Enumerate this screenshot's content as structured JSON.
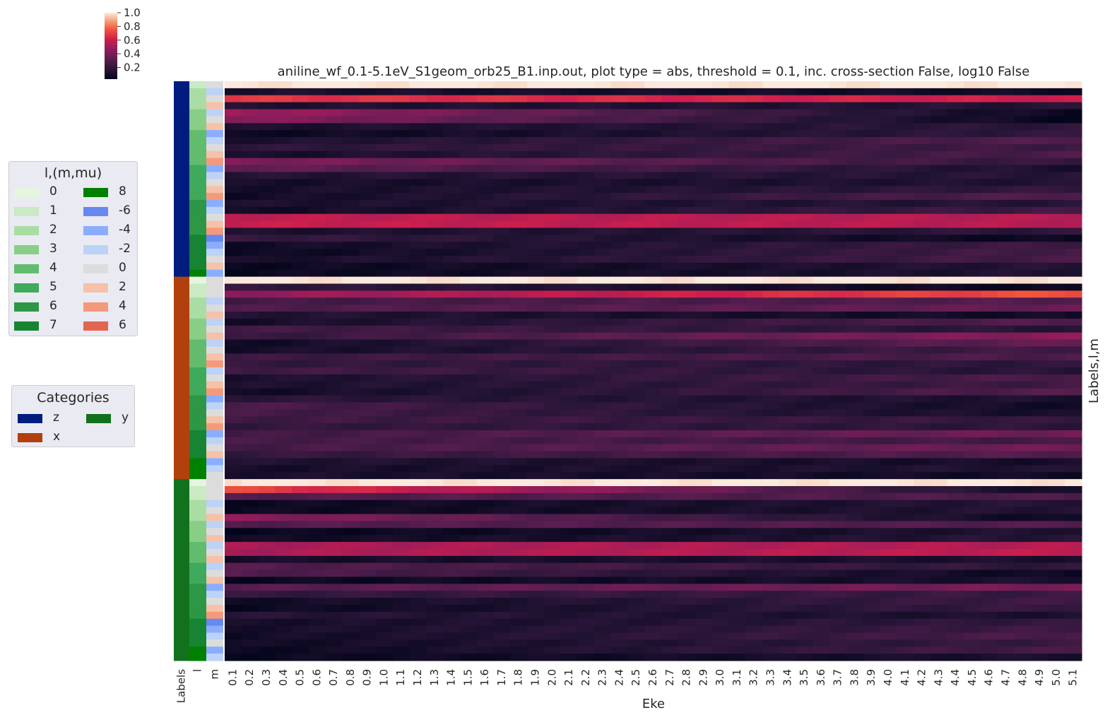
{
  "chart_data": {
    "type": "heatmap",
    "title": "aniline_wf_0.1-5.1eV_S1geom_orb25_B1.inp.out, plot type = abs, threshold = 0.1, inc. cross-section False, log10 False",
    "xlabel": "Eke",
    "ylabel": "Labels,l,m",
    "x": [
      0.1,
      0.2,
      0.3,
      0.4,
      0.5,
      0.6,
      0.7,
      0.8,
      0.9,
      1.0,
      1.1,
      1.2,
      1.3,
      1.4,
      1.5,
      1.6,
      1.7,
      1.8,
      1.9,
      2.0,
      2.1,
      2.2,
      2.3,
      2.4,
      2.5,
      2.6,
      2.7,
      2.8,
      2.9,
      3.0,
      3.1,
      3.2,
      3.3,
      3.4,
      3.5,
      3.6,
      3.7,
      3.8,
      3.9,
      4.0,
      4.1,
      4.2,
      4.3,
      4.4,
      4.5,
      4.6,
      4.7,
      4.8,
      4.9,
      5.0,
      5.1
    ],
    "row_annotation_headers": [
      "Labels",
      "l",
      "m"
    ],
    "colorbar": {
      "ticks": [
        1.0,
        0.8,
        0.6,
        0.4,
        0.2
      ],
      "range": [
        0.03,
        1.0
      ],
      "colormap": "rocket"
    },
    "groups": [
      {
        "label": "z",
        "rows": [
          {
            "l": 1,
            "m": 0,
            "start": 1.0,
            "end": 1.0
          },
          {
            "l": 2,
            "m": -2,
            "start": 0.12,
            "end": 0.08
          },
          {
            "l": 2,
            "m": 0,
            "start": 0.68,
            "end": 0.6
          },
          {
            "l": 2,
            "m": 2,
            "start": 0.13,
            "end": 0.15
          },
          {
            "l": 3,
            "m": -2,
            "start": 0.5,
            "end": 0.06
          },
          {
            "l": 3,
            "m": 0,
            "start": 0.45,
            "end": 0.05
          },
          {
            "l": 3,
            "m": 2,
            "start": 0.12,
            "end": 0.18
          },
          {
            "l": 4,
            "m": -4,
            "start": 0.06,
            "end": 0.2
          },
          {
            "l": 4,
            "m": -2,
            "start": 0.12,
            "end": 0.3
          },
          {
            "l": 4,
            "m": 0,
            "start": 0.18,
            "end": 0.24
          },
          {
            "l": 4,
            "m": 2,
            "start": 0.1,
            "end": 0.28
          },
          {
            "l": 4,
            "m": 4,
            "start": 0.42,
            "end": 0.2
          },
          {
            "l": 5,
            "m": -4,
            "start": 0.35,
            "end": 0.12
          },
          {
            "l": 5,
            "m": -2,
            "start": 0.15,
            "end": 0.16
          },
          {
            "l": 5,
            "m": 0,
            "start": 0.1,
            "end": 0.14
          },
          {
            "l": 5,
            "m": 2,
            "start": 0.1,
            "end": 0.2
          },
          {
            "l": 5,
            "m": 4,
            "start": 0.08,
            "end": 0.3
          },
          {
            "l": 6,
            "m": -4,
            "start": 0.12,
            "end": 0.16
          },
          {
            "l": 6,
            "m": -2,
            "start": 0.08,
            "end": 0.24
          },
          {
            "l": 6,
            "m": 0,
            "start": 0.58,
            "end": 0.55
          },
          {
            "l": 6,
            "m": 2,
            "start": 0.6,
            "end": 0.55
          },
          {
            "l": 6,
            "m": 4,
            "start": 0.12,
            "end": 0.18
          },
          {
            "l": 7,
            "m": -6,
            "start": 0.22,
            "end": 0.05
          },
          {
            "l": 7,
            "m": -4,
            "start": 0.08,
            "end": 0.24
          },
          {
            "l": 7,
            "m": -2,
            "start": 0.06,
            "end": 0.26
          },
          {
            "l": 7,
            "m": 0,
            "start": 0.1,
            "end": 0.26
          },
          {
            "l": 7,
            "m": 2,
            "start": 0.06,
            "end": 0.15
          },
          {
            "l": 8,
            "m": -4,
            "start": 0.06,
            "end": 0.14
          }
        ]
      },
      {
        "label": "x",
        "rows": [
          {
            "l": 0,
            "m": 0,
            "start": 1.0,
            "end": 1.0
          },
          {
            "l": 1,
            "m": 0,
            "start": 0.2,
            "end": 0.05
          },
          {
            "l": 1,
            "m": 0,
            "start": 0.45,
            "end": 0.75
          },
          {
            "l": 2,
            "m": -2,
            "start": 0.25,
            "end": 0.3
          },
          {
            "l": 2,
            "m": 0,
            "start": 0.28,
            "end": 0.35
          },
          {
            "l": 2,
            "m": 2,
            "start": 0.15,
            "end": 0.08
          },
          {
            "l": 3,
            "m": -2,
            "start": 0.1,
            "end": 0.3
          },
          {
            "l": 3,
            "m": 0,
            "start": 0.25,
            "end": 0.16
          },
          {
            "l": 3,
            "m": 2,
            "start": 0.2,
            "end": 0.45
          },
          {
            "l": 4,
            "m": -2,
            "start": 0.08,
            "end": 0.35
          },
          {
            "l": 4,
            "m": 0,
            "start": 0.1,
            "end": 0.25
          },
          {
            "l": 4,
            "m": 2,
            "start": 0.22,
            "end": 0.28
          },
          {
            "l": 4,
            "m": 4,
            "start": 0.2,
            "end": 0.18
          },
          {
            "l": 5,
            "m": -2,
            "start": 0.25,
            "end": 0.16
          },
          {
            "l": 5,
            "m": 0,
            "start": 0.12,
            "end": 0.28
          },
          {
            "l": 5,
            "m": 2,
            "start": 0.12,
            "end": 0.24
          },
          {
            "l": 5,
            "m": 4,
            "start": 0.08,
            "end": 0.3
          },
          {
            "l": 6,
            "m": -4,
            "start": 0.18,
            "end": 0.12
          },
          {
            "l": 6,
            "m": -2,
            "start": 0.28,
            "end": 0.08
          },
          {
            "l": 6,
            "m": 0,
            "start": 0.26,
            "end": 0.1
          },
          {
            "l": 6,
            "m": 2,
            "start": 0.24,
            "end": 0.2
          },
          {
            "l": 6,
            "m": 4,
            "start": 0.2,
            "end": 0.18
          },
          {
            "l": 7,
            "m": -4,
            "start": 0.24,
            "end": 0.38
          },
          {
            "l": 7,
            "m": -2,
            "start": 0.26,
            "end": 0.25
          },
          {
            "l": 7,
            "m": 0,
            "start": 0.25,
            "end": 0.38
          },
          {
            "l": 7,
            "m": 2,
            "start": 0.2,
            "end": 0.3
          },
          {
            "l": 8,
            "m": -4,
            "start": 0.14,
            "end": 0.1
          },
          {
            "l": 8,
            "m": -2,
            "start": 0.1,
            "end": 0.14
          },
          {
            "l": 8,
            "m": 0,
            "start": 0.12,
            "end": 0.08
          }
        ]
      },
      {
        "label": "y",
        "rows": [
          {
            "l": 0,
            "m": 0,
            "start": 1.0,
            "end": 1.0
          },
          {
            "l": 1,
            "m": 0,
            "start": 0.72,
            "end": 0.08
          },
          {
            "l": 1,
            "m": 0,
            "start": 0.3,
            "end": 0.28
          },
          {
            "l": 2,
            "m": -2,
            "start": 0.06,
            "end": 0.16
          },
          {
            "l": 2,
            "m": 0,
            "start": 0.06,
            "end": 0.15
          },
          {
            "l": 2,
            "m": 2,
            "start": 0.45,
            "end": 0.06
          },
          {
            "l": 3,
            "m": -2,
            "start": 0.3,
            "end": 0.3
          },
          {
            "l": 3,
            "m": 0,
            "start": 0.05,
            "end": 0.14
          },
          {
            "l": 3,
            "m": 2,
            "start": 0.08,
            "end": 0.16
          },
          {
            "l": 4,
            "m": -2,
            "start": 0.52,
            "end": 0.55
          },
          {
            "l": 4,
            "m": 0,
            "start": 0.52,
            "end": 0.58
          },
          {
            "l": 4,
            "m": 2,
            "start": 0.1,
            "end": 0.12
          },
          {
            "l": 5,
            "m": -2,
            "start": 0.3,
            "end": 0.18
          },
          {
            "l": 5,
            "m": 0,
            "start": 0.3,
            "end": 0.06
          },
          {
            "l": 5,
            "m": 2,
            "start": 0.06,
            "end": 0.12
          },
          {
            "l": 6,
            "m": -4,
            "start": 0.3,
            "end": 0.4
          },
          {
            "l": 6,
            "m": -2,
            "start": 0.2,
            "end": 0.22
          },
          {
            "l": 6,
            "m": 0,
            "start": 0.08,
            "end": 0.24
          },
          {
            "l": 6,
            "m": 2,
            "start": 0.06,
            "end": 0.22
          },
          {
            "l": 6,
            "m": 4,
            "start": 0.16,
            "end": 0.12
          },
          {
            "l": 7,
            "m": -6,
            "start": 0.1,
            "end": 0.2
          },
          {
            "l": 7,
            "m": -4,
            "start": 0.1,
            "end": 0.24
          },
          {
            "l": 7,
            "m": -2,
            "start": 0.08,
            "end": 0.28
          },
          {
            "l": 7,
            "m": 0,
            "start": 0.08,
            "end": 0.22
          },
          {
            "l": 8,
            "m": -4,
            "start": 0.06,
            "end": 0.26
          },
          {
            "l": 8,
            "m": -2,
            "start": 0.06,
            "end": 0.12
          }
        ]
      }
    ]
  },
  "legend_lm": {
    "title": "l,(m,mu)",
    "items": [
      {
        "label": "0",
        "color": "#e5f5e0"
      },
      {
        "label": "1",
        "color": "#c9eac2"
      },
      {
        "label": "2",
        "color": "#aadda4"
      },
      {
        "label": "3",
        "color": "#88ce87"
      },
      {
        "label": "4",
        "color": "#63bb6d"
      },
      {
        "label": "5",
        "color": "#3fa95c"
      },
      {
        "label": "6",
        "color": "#2d9746"
      },
      {
        "label": "7",
        "color": "#178433"
      },
      {
        "label": "8",
        "color": "#008000"
      },
      {
        "label": "-6",
        "color": "#6788ee"
      },
      {
        "label": "-4",
        "color": "#8badfd"
      },
      {
        "label": "-2",
        "color": "#bcd2f7"
      },
      {
        "label": "0",
        "color": "#dddcdc"
      },
      {
        "label": "2",
        "color": "#f5c1a9"
      },
      {
        "label": "4",
        "color": "#f49a7b"
      },
      {
        "label": "6",
        "color": "#e36551"
      }
    ]
  },
  "legend_categories": {
    "title": "Categories",
    "items": [
      {
        "label": "z",
        "color": "#001c7f"
      },
      {
        "label": "x",
        "color": "#b1400d"
      },
      {
        "label": "y",
        "color": "#12711c"
      }
    ]
  }
}
